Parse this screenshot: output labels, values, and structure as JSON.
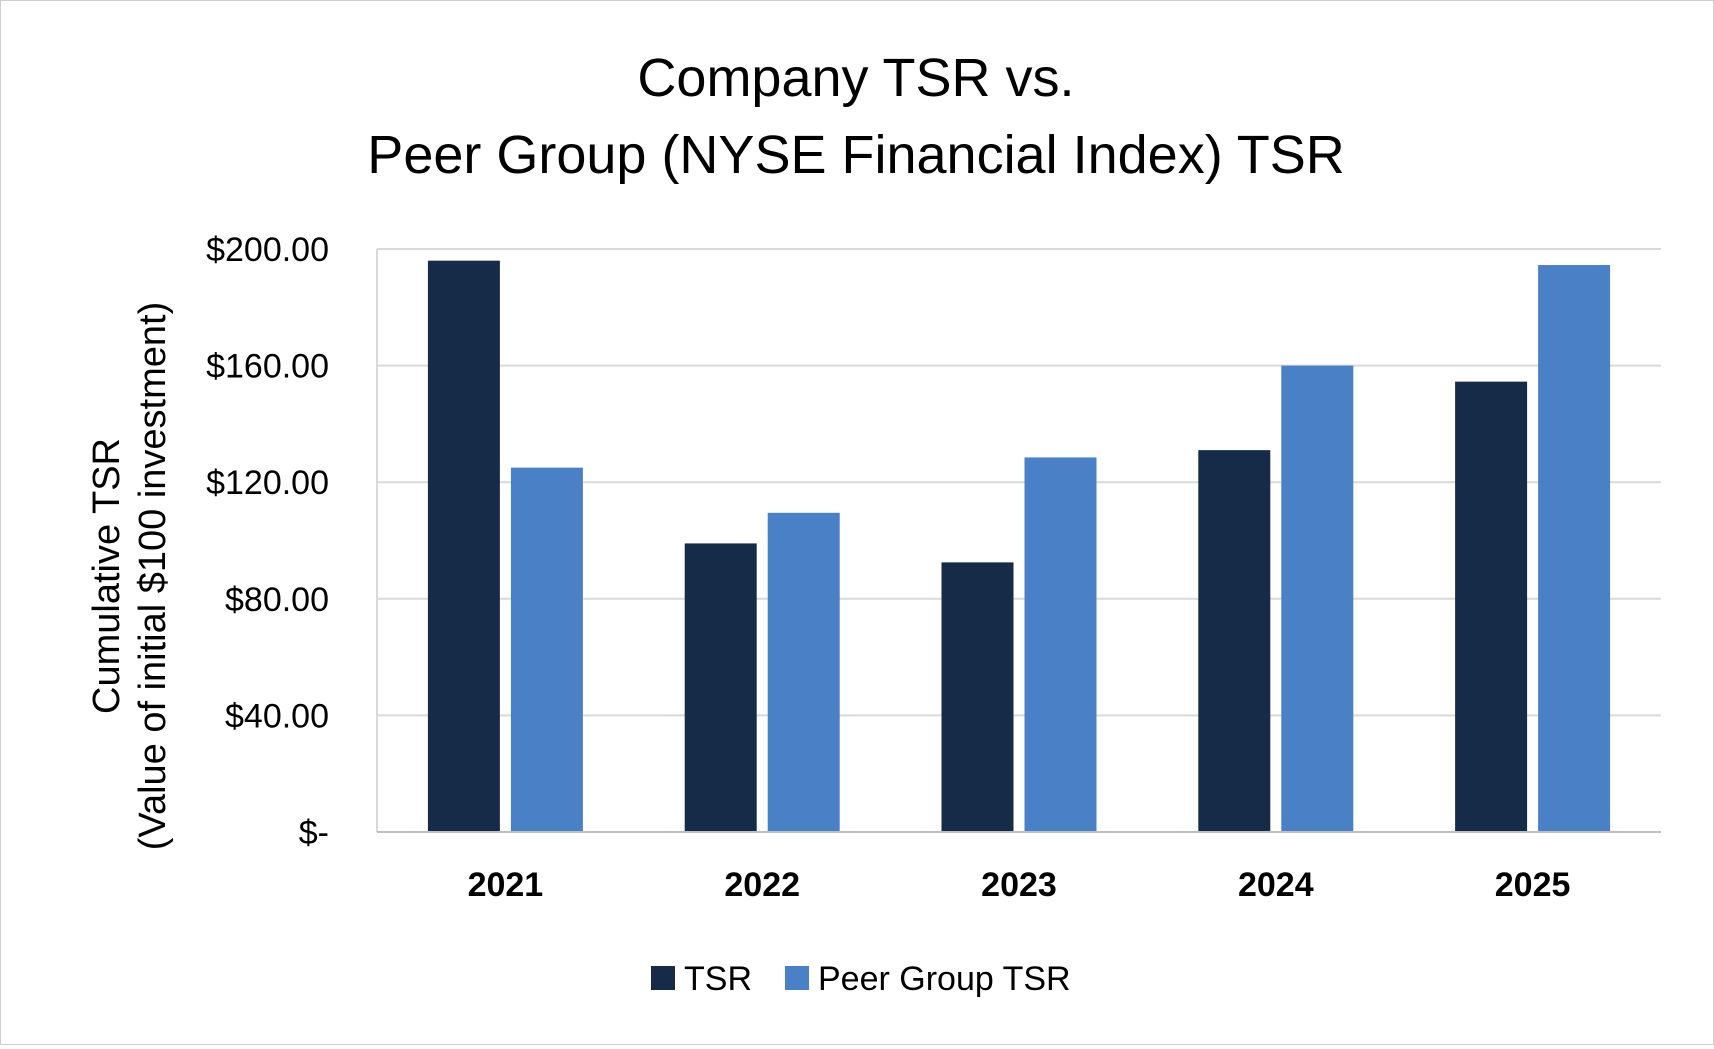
{
  "chart_data": {
    "type": "bar",
    "title_lines": [
      "Company TSR vs.",
      "Peer Group (NYSE Financial Index) TSR"
    ],
    "ylabel_lines": [
      "Cumulative TSR",
      "(Value of initial $100 investment)"
    ],
    "xlabel": "",
    "categories": [
      "2021",
      "2022",
      "2023",
      "2024",
      "2025"
    ],
    "series": [
      {
        "name": "TSR",
        "color": "#162b48",
        "values": [
          196,
          99,
          92.5,
          131,
          154.5
        ]
      },
      {
        "name": "Peer Group TSR",
        "color": "#4a80c6",
        "values": [
          125,
          109.5,
          128.5,
          160,
          194.5
        ]
      }
    ],
    "ylim": [
      0,
      200
    ],
    "yticks": [
      0,
      40,
      80,
      120,
      160,
      200
    ],
    "ytick_labels": [
      "$-",
      "$40.00",
      "$80.00",
      "$120.00",
      "$160.00",
      "$200.00"
    ],
    "grid": true,
    "legend_position": "bottom"
  }
}
